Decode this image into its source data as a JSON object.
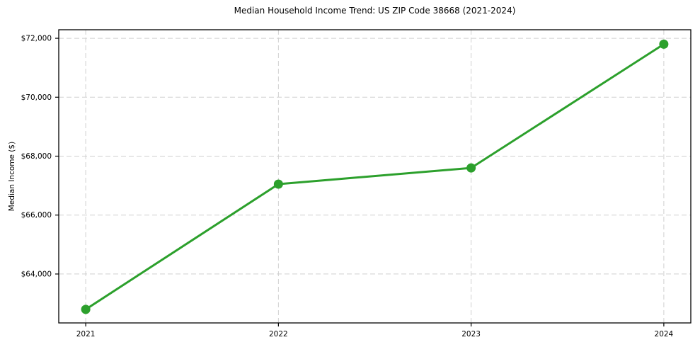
{
  "chart_data": {
    "type": "line",
    "title": "Median Household Income Trend: US ZIP Code 38668 (2021-2024)",
    "xlabel": "",
    "ylabel": "Median Income ($)",
    "x": [
      2021,
      2022,
      2023,
      2024
    ],
    "xtick_labels": [
      "2021",
      "2022",
      "2023",
      "2024"
    ],
    "values": [
      62800,
      67050,
      67600,
      71800
    ],
    "yticks": [
      64000,
      66000,
      68000,
      70000,
      72000
    ],
    "ytick_labels": [
      "$64,000",
      "$66,000",
      "$68,000",
      "$70,000",
      "$72,000"
    ],
    "xlim": [
      2020.86,
      2024.14
    ],
    "ylim": [
      62340,
      72290
    ],
    "grid": true,
    "grid_style": "dashed",
    "legend_position": "none",
    "marker": "circle",
    "colors": {
      "line": "#2ca02c",
      "grid": "#d0d0d0",
      "axis": "#000000",
      "text": "#000000",
      "background": "#ffffff"
    }
  }
}
